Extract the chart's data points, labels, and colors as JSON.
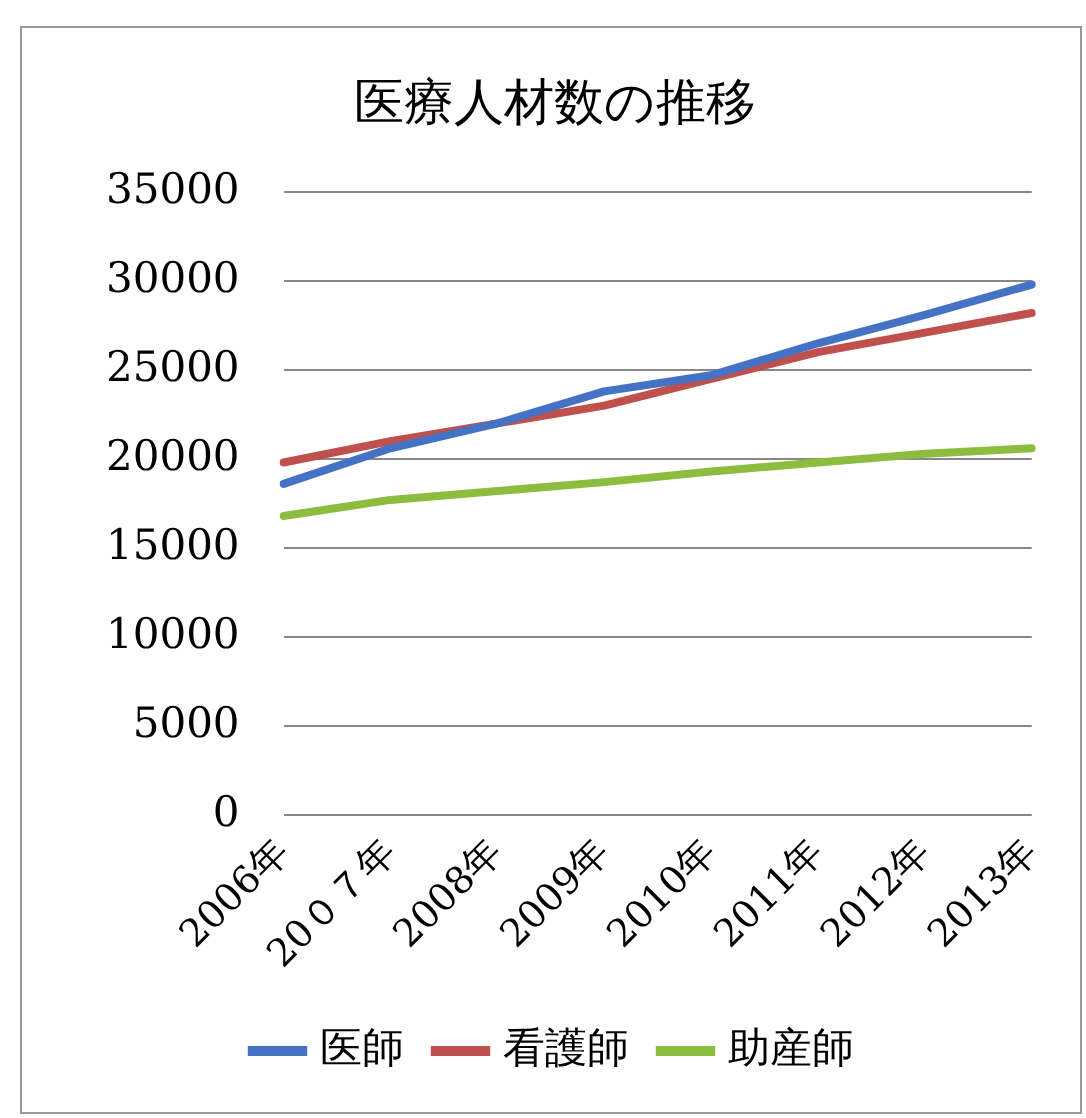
{
  "chart_data": {
    "type": "line",
    "title": "医療人材数の推移",
    "categories": [
      "2006年",
      "20０７年",
      "2008年",
      "2009年",
      "2010年",
      "2011年",
      "2012年",
      "2013年"
    ],
    "series": [
      {
        "name": "医師",
        "color": "#4472c4",
        "values": [
          18600,
          20600,
          22000,
          23800,
          24700,
          26500,
          28100,
          29800
        ]
      },
      {
        "name": "看護師",
        "color": "#c0504d",
        "values": [
          19800,
          21000,
          22000,
          23000,
          24500,
          26000,
          27100,
          28200
        ]
      },
      {
        "name": "助産師",
        "color": "#8cbd3f",
        "values": [
          16800,
          17700,
          18200,
          18700,
          19300,
          19800,
          20300,
          20600
        ]
      }
    ],
    "ylim": [
      0,
      35000
    ],
    "yticks": [
      0,
      5000,
      10000,
      15000,
      20000,
      25000,
      30000,
      35000
    ],
    "grid": "y",
    "legend": "bottom",
    "marker": "none",
    "line_style": "solid"
  }
}
